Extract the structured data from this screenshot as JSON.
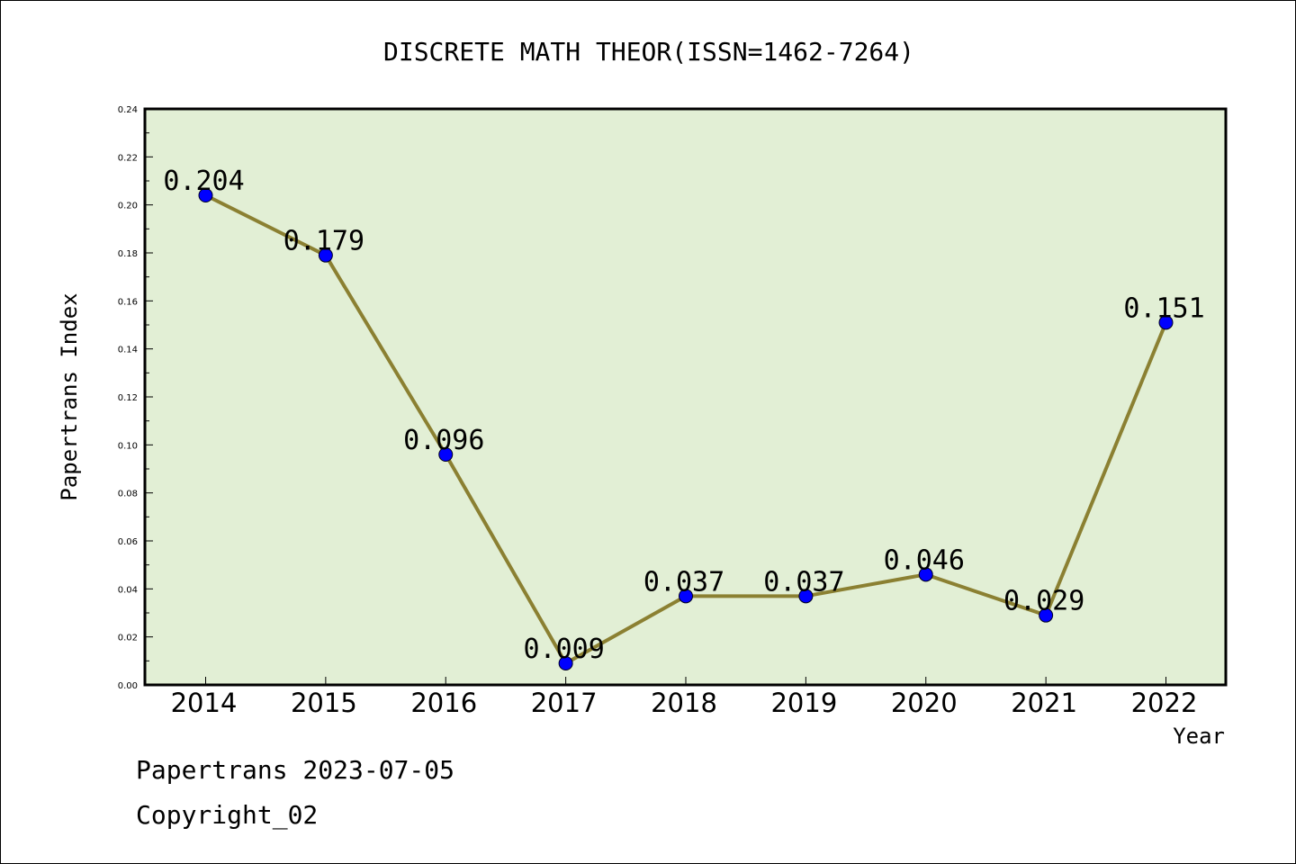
{
  "footer": {
    "line1": "Papertrans 2023-07-05",
    "line2": "Copyright_02"
  },
  "chart_data": {
    "type": "line",
    "title": "DISCRETE MATH THEOR(ISSN=1462-7264)",
    "xlabel": "Year",
    "ylabel": "Papertrans Index",
    "categories": [
      "2014",
      "2015",
      "2016",
      "2017",
      "2018",
      "2019",
      "2020",
      "2021",
      "2022"
    ],
    "values": [
      0.204,
      0.179,
      0.096,
      0.009,
      0.037,
      0.037,
      0.046,
      0.029,
      0.151
    ],
    "data_labels": [
      "0.204",
      "0.179",
      "0.096",
      "0.009",
      "0.037",
      "0.037",
      "0.046",
      "0.029",
      "0.151"
    ],
    "ylim": [
      0,
      0.24
    ],
    "yticks": [
      "0.00",
      "0.02",
      "0.04",
      "0.06",
      "0.08",
      "0.10",
      "0.12",
      "0.14",
      "0.16",
      "0.18",
      "0.20",
      "0.22",
      "0.24"
    ],
    "grid": false,
    "line_color": "#8b8032",
    "marker_color": "#0000ff",
    "plot_background": "#e2efd5"
  }
}
